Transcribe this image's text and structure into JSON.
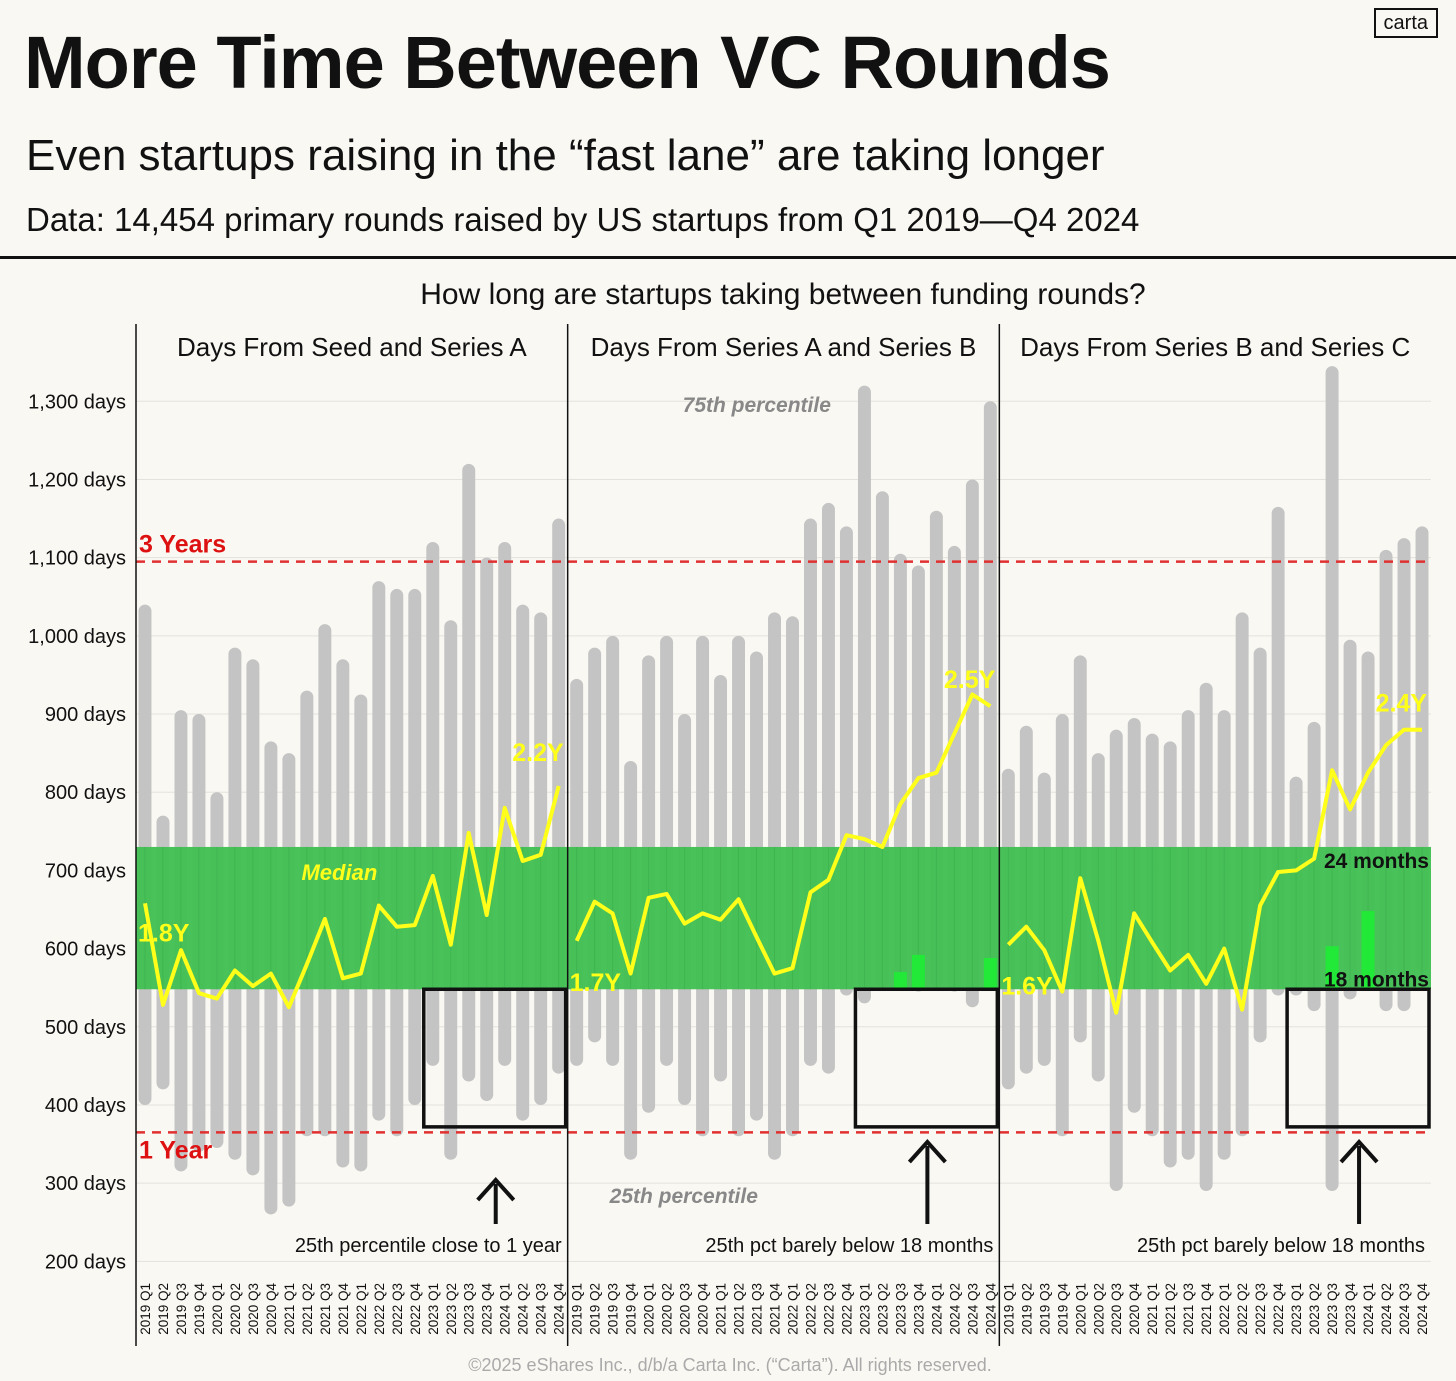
{
  "header": {
    "title": "More Time Between VC Rounds",
    "subtitle": "Even startups raising in the “fast lane” are taking longer",
    "data_note": "Data: 14,454 primary rounds raised by US startups from Q1 2019—Q4 2024",
    "logo": "carta"
  },
  "footer": "©2025 eShares Inc., d/b/a Carta Inc. (“Carta”). All rights reserved.",
  "colors": {
    "bar": "#c4c4c4",
    "median_line": "#ffff1a",
    "band": "#44c055",
    "band_highlight": "#22e838",
    "reference_line": "#e03030",
    "reference_label": "#dd1111",
    "annotation_gray": "#888888"
  },
  "chart_data": {
    "type": "bar",
    "title": "How long are startups taking between funding rounds?",
    "ylim": [
      180,
      1340
    ],
    "y_ticks": [
      200,
      300,
      400,
      500,
      600,
      700,
      800,
      900,
      1000,
      1100,
      1200,
      1300
    ],
    "y_tick_labels": [
      "200 days",
      "300 days",
      "400 days",
      "500 days",
      "600 days",
      "700 days",
      "800 days",
      "900 days",
      "1,000 days",
      "1,100 days",
      "1,200 days",
      "1,300 days"
    ],
    "categories": [
      "2019 Q1",
      "2019 Q2",
      "2019 Q3",
      "2019 Q4",
      "2020 Q1",
      "2020 Q2",
      "2020 Q3",
      "2020 Q4",
      "2021 Q1",
      "2021 Q2",
      "2021 Q3",
      "2021 Q4",
      "2022 Q1",
      "2022 Q2",
      "2022 Q3",
      "2022 Q4",
      "2023 Q1",
      "2023 Q2",
      "2023 Q3",
      "2023 Q4",
      "2024 Q1",
      "2024 Q2",
      "2024 Q3",
      "2024 Q4"
    ],
    "reference_lines": [
      {
        "label": "3 Years",
        "value": 1095
      },
      {
        "label": "1 Year",
        "value": 365
      }
    ],
    "band": {
      "from": 548,
      "to": 730,
      "top_label": "24 months",
      "bottom_label": "18 months"
    },
    "panels": [
      {
        "title": "Days From Seed and Series A",
        "p75": [
          1040,
          770,
          905,
          900,
          800,
          985,
          970,
          865,
          850,
          930,
          1015,
          970,
          925,
          1070,
          1060,
          1060,
          1120,
          1020,
          1220,
          1100,
          1120,
          1040,
          1030,
          1150
        ],
        "p25": [
          400,
          420,
          315,
          340,
          345,
          330,
          310,
          260,
          270,
          360,
          360,
          320,
          315,
          380,
          360,
          400,
          450,
          330,
          430,
          405,
          450,
          380,
          400,
          440
        ],
        "median": [
          658,
          528,
          598,
          543,
          536,
          572,
          552,
          568,
          525,
          580,
          638,
          562,
          568,
          655,
          628,
          630,
          693,
          605,
          748,
          643,
          780,
          712,
          720,
          808
        ],
        "highlights": [],
        "median_start_label": "1.8Y",
        "median_end_label": "2.2Y",
        "series_label": "Median",
        "arrow_note": "25th percentile close to 1 year"
      },
      {
        "title": "Days From Series A and Series B",
        "p75": [
          945,
          985,
          1000,
          840,
          975,
          1000,
          900,
          1000,
          950,
          1000,
          980,
          1030,
          1025,
          1150,
          1170,
          1140,
          1320,
          1185,
          1105,
          1090,
          1160,
          1115,
          1200,
          1300
        ],
        "p25": [
          450,
          480,
          450,
          330,
          390,
          450,
          400,
          360,
          430,
          360,
          380,
          330,
          360,
          450,
          440,
          540,
          530,
          550,
          560,
          545,
          550,
          545,
          525,
          570
        ],
        "median": [
          610,
          660,
          645,
          568,
          665,
          670,
          632,
          645,
          637,
          663,
          615,
          568,
          575,
          672,
          688,
          745,
          740,
          730,
          785,
          818,
          825,
          875,
          925,
          910
        ],
        "highlights": [
          {
            "index": 18,
            "top": 570
          },
          {
            "index": 19,
            "top": 592
          },
          {
            "index": 23,
            "top": 588
          }
        ],
        "median_start_label": "1.7Y",
        "median_end_label": "2.5Y",
        "series_label": "",
        "arrow_note": "25th pct barely below 18 months"
      },
      {
        "title": "Days From Series B and Series C",
        "p75": [
          830,
          885,
          825,
          900,
          975,
          850,
          880,
          895,
          875,
          865,
          905,
          940,
          905,
          1030,
          985,
          1165,
          820,
          890,
          1345,
          995,
          980,
          1110,
          1125,
          1140
        ],
        "p25": [
          420,
          440,
          450,
          360,
          480,
          430,
          290,
          390,
          360,
          320,
          330,
          290,
          330,
          360,
          480,
          540,
          540,
          520,
          290,
          535,
          560,
          520,
          520,
          570
        ],
        "median": [
          605,
          628,
          598,
          545,
          690,
          610,
          518,
          645,
          608,
          572,
          592,
          555,
          600,
          522,
          655,
          698,
          700,
          715,
          828,
          778,
          825,
          860,
          880,
          880
        ],
        "highlights": [
          {
            "index": 18,
            "top": 603
          },
          {
            "index": 20,
            "top": 648
          }
        ],
        "median_start_label": "1.6Y",
        "median_end_label": "2.4Y",
        "series_label": "",
        "arrow_note": "25th pct barely below 18 months"
      }
    ],
    "panel_annotations": {
      "p75_label": "75th percentile",
      "p25_label": "25th percentile"
    },
    "box": {
      "from": 372,
      "to": 548,
      "start_index": 16
    }
  }
}
